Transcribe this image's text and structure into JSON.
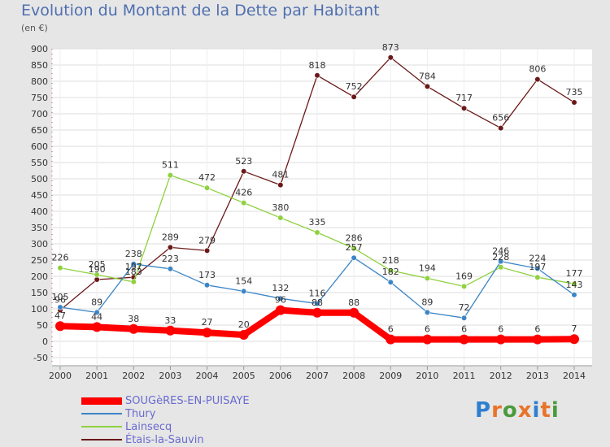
{
  "title": "Evolution du Montant de la Dette par Habitant",
  "subtitle": "(en €)",
  "logo": {
    "text": "Proxiti",
    "colors": [
      "#2f7fd0",
      "#e8742a",
      "#4a9a3c",
      "#e8742a",
      "#2f7fd0",
      "#e8742a",
      "#4a9a3c"
    ]
  },
  "chart_data": {
    "type": "line",
    "x": [
      "2000",
      "2001",
      "2002",
      "2003",
      "2004",
      "2005",
      "2006",
      "2007",
      "2008",
      "2009",
      "2010",
      "2011",
      "2012",
      "2013",
      "2014"
    ],
    "ylim": [
      -50,
      900
    ],
    "yticks": [
      "-50",
      "0",
      "50",
      "100",
      "150",
      "200",
      "250",
      "300",
      "350",
      "400",
      "450",
      "500",
      "550",
      "600",
      "650",
      "700",
      "750",
      "800",
      "850",
      "900"
    ],
    "grid": true,
    "legend_placement": "bottom-left",
    "series": [
      {
        "name": "SOUGèRES-EN-PUISAYE",
        "color": "#ff0000",
        "values": [
          47,
          44,
          38,
          33,
          27,
          20,
          96,
          88,
          88,
          6,
          6,
          6,
          6,
          6,
          7
        ],
        "labels": [
          "47",
          "44",
          "38",
          "33",
          "27",
          "20",
          "96",
          "88",
          "88",
          "6",
          "6",
          "6",
          "6",
          "6",
          "7"
        ]
      },
      {
        "name": "Thury",
        "color": "#3b85c6",
        "values": [
          105,
          89,
          238,
          223,
          173,
          154,
          132,
          116,
          257,
          182,
          89,
          72,
          246,
          224,
          143
        ],
        "labels": [
          "105",
          "89",
          "238",
          "223",
          "173",
          "154",
          "132",
          "116",
          "257",
          "182",
          "89",
          "72",
          "246",
          "224",
          "143"
        ]
      },
      {
        "name": "Lainsecq",
        "color": "#8fd13f",
        "values": [
          226,
          205,
          183,
          511,
          472,
          426,
          380,
          335,
          286,
          218,
          194,
          169,
          228,
          197,
          177
        ],
        "labels": [
          "226",
          "205",
          "183",
          "511",
          "472",
          "426",
          "380",
          "335",
          "286",
          "218",
          "194",
          "169",
          "228",
          "197",
          "177"
        ]
      },
      {
        "name": "Étais-la-Sauvin",
        "color": "#6b1818",
        "values": [
          96,
          190,
          197,
          289,
          279,
          523,
          481,
          818,
          752,
          873,
          784,
          717,
          656,
          806,
          735
        ],
        "labels": [
          "96",
          "190",
          "197",
          "289",
          "279",
          "523",
          "481",
          "818",
          "752",
          "873",
          "784",
          "717",
          "656",
          "806",
          "735"
        ]
      }
    ]
  }
}
